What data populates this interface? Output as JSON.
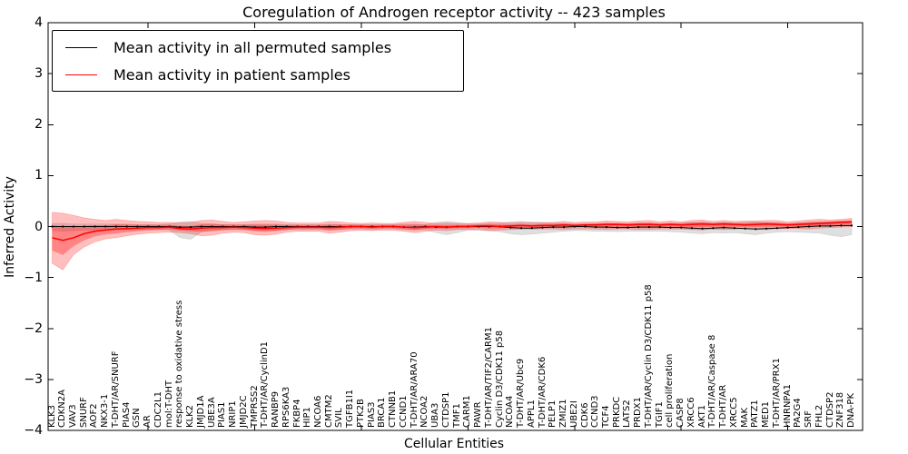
{
  "title": "Coregulation of Androgen receptor activity -- 423 samples",
  "legend": {
    "items": [
      {
        "label": "Mean activity in all permuted samples",
        "color": "#000000"
      },
      {
        "label": "Mean activity in patient samples",
        "color": "#ff0000"
      }
    ]
  },
  "colors": {
    "black_line": "#000000",
    "red_line": "#ff0000",
    "red_band_fill": "#ff0000",
    "gray_band_fill": "#808080",
    "axis": "#000000",
    "background": "#ffffff"
  },
  "chart_data": {
    "type": "line",
    "title": "Coregulation of Androgen receptor activity -- 423 samples",
    "xlabel": "Cellular Entities",
    "ylabel": "Inferred Activity",
    "ylim": [
      -4,
      4
    ],
    "yticks": [
      4,
      3,
      2,
      1,
      0,
      -1,
      -2,
      -3,
      -4
    ],
    "grid": false,
    "legend_position": "upper left",
    "categories": [
      "KLK3",
      "CDKN2A",
      "VAV3",
      "SNURF",
      "AOF2",
      "NKX3-1",
      "T-DHT/AR/SNURF",
      "PIAS4",
      "GSN",
      "AR",
      "CDC2L1",
      "mol:T-DHT",
      "response to oxidative stress",
      "KLK2",
      "JMJD1A",
      "UBE3A",
      "PIAS1",
      "NRIP1",
      "JMJD2C",
      "TMPRSS2",
      "T-DHT/AR/CyclinD1",
      "RANBP9",
      "RPS6KA3",
      "FKBP4",
      "HIP1",
      "NCOA6",
      "CMTM2",
      "SVIL",
      "TGFB1I1",
      "PTK2B",
      "PIAS3",
      "BRCA1",
      "CTNNB1",
      "CCND1",
      "T-DHT/AR/ARA70",
      "NCOA2",
      "UBA3",
      "CTDSP1",
      "TMF1",
      "CARM1",
      "PAWR",
      "T-DHT/AR/TIF2/CARM1",
      "Cyclin D3/CDK11 p58",
      "NCOA4",
      "T-DHT/AR/Ubc9",
      "APPL1",
      "T-DHT/AR/CDK6",
      "PELP1",
      "ZMIZ1",
      "UBE2I",
      "CDK6",
      "CCND3",
      "TCF4",
      "PRKDC",
      "LATS2",
      "PRDX1",
      "T-DHT/AR/Cyclin D3/CDK11 p58",
      "TGIF1",
      "cell proliferation",
      "CASP8",
      "XRCC6",
      "AKT1",
      "T-DHT/AR/Caspase 8",
      "T-DHT/AR",
      "XRCC5",
      "MAK",
      "PATZ1",
      "MED1",
      "T-DHT/AR/PRX1",
      "HNRNPA1",
      "PA2G4",
      "SRF",
      "FHL2",
      "CTDSP2",
      "ZNF318",
      "DNA-PK"
    ],
    "series": [
      {
        "name": "Mean activity in all permuted samples",
        "color": "#000000",
        "values": [
          0,
          0,
          0,
          0,
          0,
          0,
          0,
          0,
          0,
          0,
          0,
          0,
          -0.01,
          -0.01,
          0,
          0,
          0,
          0,
          0,
          -0.01,
          -0.01,
          0,
          0,
          0,
          0,
          0,
          0,
          0,
          0,
          0,
          0,
          0,
          0,
          -0.01,
          -0.01,
          0,
          -0.01,
          -0.01,
          0,
          0,
          0,
          0,
          0,
          -0.02,
          -0.03,
          -0.03,
          -0.02,
          -0.01,
          -0.01,
          0,
          0,
          -0.01,
          -0.01,
          -0.02,
          -0.02,
          -0.01,
          -0.01,
          -0.01,
          -0.02,
          -0.02,
          -0.03,
          -0.04,
          -0.03,
          -0.02,
          -0.03,
          -0.04,
          -0.05,
          -0.04,
          -0.03,
          -0.02,
          -0.01,
          0,
          0.01,
          0.01,
          0.02,
          0.02
        ],
        "band_upper": [
          0.06,
          0.06,
          0.05,
          0.05,
          0.05,
          0.05,
          0.05,
          0.05,
          0.04,
          0.04,
          0.04,
          0.05,
          0.09,
          0.1,
          0.06,
          0.05,
          0.04,
          0.04,
          0.04,
          0.05,
          0.05,
          0.05,
          0.04,
          0.04,
          0.04,
          0.04,
          0.05,
          0.04,
          0.04,
          0.04,
          0.04,
          0.04,
          0.04,
          0.05,
          0.05,
          0.04,
          0.08,
          0.1,
          0.08,
          0.05,
          0.05,
          0.06,
          0.07,
          0.09,
          0.1,
          0.09,
          0.08,
          0.07,
          0.06,
          0.05,
          0.05,
          0.06,
          0.06,
          0.06,
          0.06,
          0.06,
          0.06,
          0.06,
          0.06,
          0.07,
          0.08,
          0.08,
          0.07,
          0.08,
          0.07,
          0.08,
          0.09,
          0.08,
          0.07,
          0.06,
          0.07,
          0.08,
          0.08,
          0.1,
          0.11,
          0.1
        ],
        "band_lower": [
          -0.08,
          -0.09,
          -0.08,
          -0.07,
          -0.07,
          -0.06,
          -0.06,
          -0.06,
          -0.06,
          -0.06,
          -0.05,
          -0.07,
          -0.22,
          -0.25,
          -0.1,
          -0.07,
          -0.06,
          -0.06,
          -0.06,
          -0.07,
          -0.08,
          -0.07,
          -0.06,
          -0.06,
          -0.06,
          -0.06,
          -0.07,
          -0.06,
          -0.05,
          -0.05,
          -0.06,
          -0.05,
          -0.05,
          -0.06,
          -0.07,
          -0.06,
          -0.12,
          -0.16,
          -0.12,
          -0.07,
          -0.07,
          -0.08,
          -0.1,
          -0.14,
          -0.16,
          -0.15,
          -0.13,
          -0.11,
          -0.09,
          -0.08,
          -0.08,
          -0.09,
          -0.09,
          -0.1,
          -0.09,
          -0.09,
          -0.09,
          -0.09,
          -0.1,
          -0.11,
          -0.13,
          -0.14,
          -0.12,
          -0.13,
          -0.12,
          -0.14,
          -0.16,
          -0.13,
          -0.11,
          -0.1,
          -0.11,
          -0.12,
          -0.13,
          -0.17,
          -0.2,
          -0.16
        ]
      },
      {
        "name": "Mean activity in patient samples",
        "color": "#ff0000",
        "values": [
          -0.22,
          -0.27,
          -0.22,
          -0.14,
          -0.09,
          -0.07,
          -0.05,
          -0.04,
          -0.03,
          -0.02,
          -0.02,
          -0.01,
          -0.04,
          -0.05,
          -0.03,
          -0.02,
          -0.02,
          -0.01,
          -0.02,
          -0.03,
          -0.04,
          -0.03,
          -0.02,
          -0.01,
          -0.01,
          -0.01,
          -0.02,
          -0.01,
          0,
          0,
          -0.01,
          0,
          0,
          -0.01,
          -0.02,
          -0.01,
          0,
          -0.01,
          0,
          0,
          0.01,
          0.01,
          0,
          0.01,
          0.02,
          0.01,
          0.02,
          0.02,
          0.03,
          0.02,
          0.03,
          0.03,
          0.04,
          0.04,
          0.03,
          0.04,
          0.04,
          0.03,
          0.04,
          0.03,
          0.04,
          0.05,
          0.04,
          0.05,
          0.04,
          0.03,
          0.04,
          0.05,
          0.04,
          0.03,
          0.04,
          0.05,
          0.06,
          0.07,
          0.08,
          0.09
        ],
        "band_upper": [
          0.28,
          0.26,
          0.22,
          0.17,
          0.14,
          0.12,
          0.14,
          0.12,
          0.1,
          0.09,
          0.08,
          0.08,
          0.07,
          0.08,
          0.12,
          0.13,
          0.1,
          0.08,
          0.09,
          0.11,
          0.12,
          0.11,
          0.08,
          0.07,
          0.07,
          0.07,
          0.1,
          0.09,
          0.07,
          0.06,
          0.07,
          0.06,
          0.06,
          0.08,
          0.1,
          0.08,
          0.06,
          0.07,
          0.06,
          0.06,
          0.07,
          0.09,
          0.08,
          0.07,
          0.08,
          0.07,
          0.08,
          0.08,
          0.1,
          0.08,
          0.09,
          0.09,
          0.11,
          0.1,
          0.09,
          0.11,
          0.12,
          0.09,
          0.11,
          0.09,
          0.12,
          0.13,
          0.1,
          0.12,
          0.1,
          0.11,
          0.11,
          0.12,
          0.12,
          0.09,
          0.11,
          0.13,
          0.14,
          0.13,
          0.14,
          0.16
        ],
        "band_lower": [
          -0.72,
          -0.85,
          -0.55,
          -0.4,
          -0.3,
          -0.24,
          -0.22,
          -0.18,
          -0.15,
          -0.13,
          -0.12,
          -0.11,
          -0.12,
          -0.14,
          -0.18,
          -0.17,
          -0.13,
          -0.11,
          -0.12,
          -0.16,
          -0.17,
          -0.15,
          -0.11,
          -0.09,
          -0.09,
          -0.09,
          -0.13,
          -0.11,
          -0.08,
          -0.07,
          -0.08,
          -0.07,
          -0.07,
          -0.09,
          -0.12,
          -0.09,
          -0.07,
          -0.08,
          -0.06,
          -0.06,
          -0.06,
          -0.08,
          -0.07,
          -0.06,
          -0.05,
          -0.05,
          -0.05,
          -0.05,
          -0.06,
          -0.05,
          -0.05,
          -0.05,
          -0.06,
          -0.05,
          -0.05,
          -0.06,
          -0.06,
          -0.05,
          -0.05,
          -0.05,
          -0.06,
          -0.07,
          -0.05,
          -0.06,
          -0.05,
          -0.04,
          -0.05,
          -0.06,
          -0.04,
          -0.04,
          -0.04,
          -0.05,
          -0.03,
          -0.02,
          -0.01,
          0
        ]
      }
    ]
  }
}
